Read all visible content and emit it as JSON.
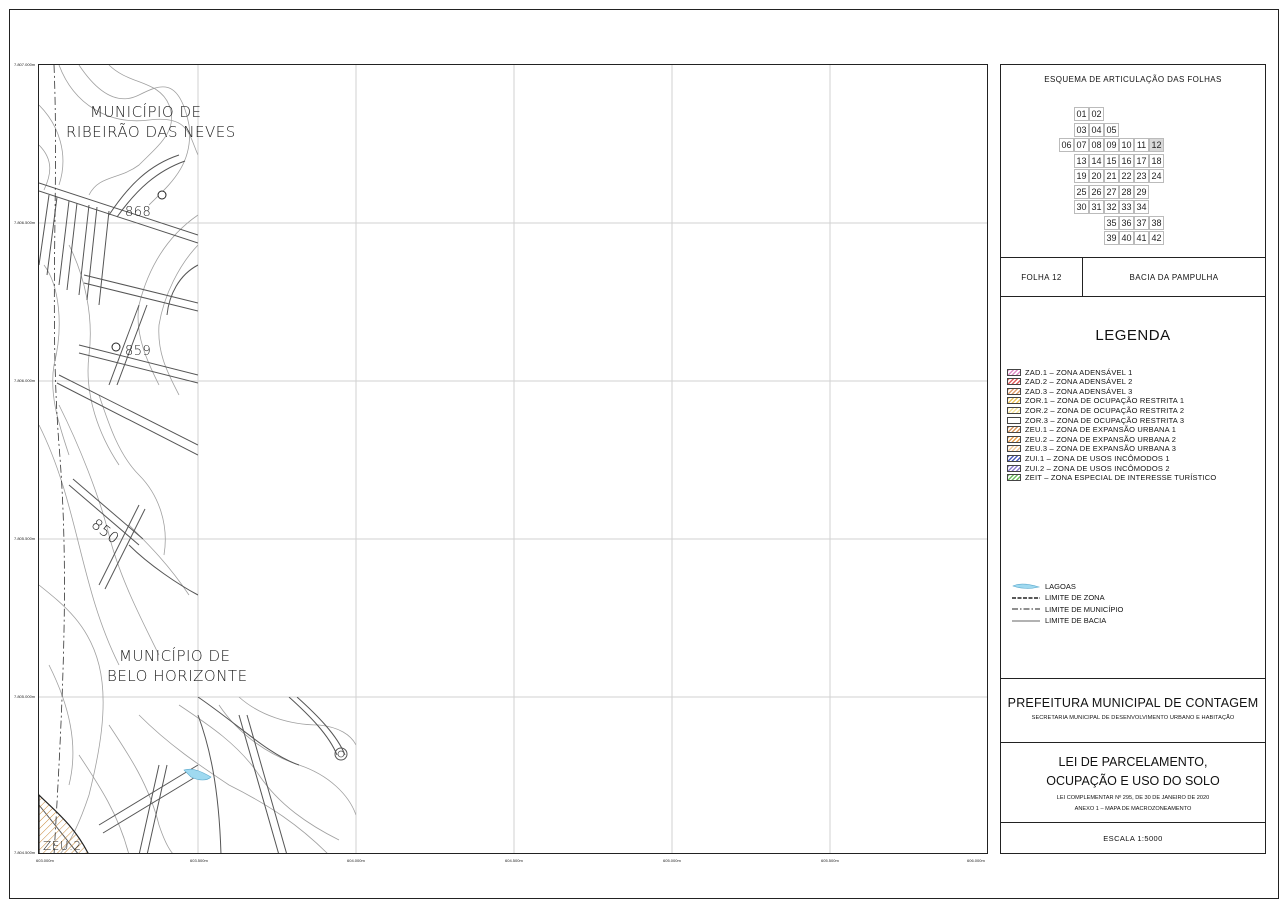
{
  "map": {
    "labels": {
      "mun_ribeirao_1": "MUNICÍPIO DE",
      "mun_ribeirao_2": "RIBEIRÃO DAS NEVES",
      "mun_bh_1": "MUNICÍPIO DE",
      "mun_bh_2": "BELO HORIZONTE",
      "elev_868": "868",
      "elev_859": "859",
      "elev_850": "850",
      "zone_zeu2": "ZEU.2"
    },
    "y_coords": [
      "7.807.000m",
      "7.806.500m",
      "7.806.000m",
      "7.805.500m",
      "7.805.000m",
      "7.804.500m"
    ],
    "x_coords": [
      "603.000m",
      "603.500m",
      "604.000m",
      "604.500m",
      "605.000m",
      "605.500m",
      "606.000m"
    ],
    "colors": {
      "lake": "#9fd9f0",
      "zeu2_hatch": "#e8a050",
      "grid": "#cfcfcf",
      "contour": "#9a9a9a",
      "road": "#444444"
    }
  },
  "panel": {
    "articulation": {
      "title": "ESQUEMA DE ARTICULAÇÃO DAS FOLHAS",
      "rows": [
        {
          "start": 1,
          "cells": [
            "01",
            "02"
          ]
        },
        {
          "start": 1,
          "cells": [
            "03",
            "04",
            "05"
          ]
        },
        {
          "start": 0,
          "cells": [
            "06",
            "07",
            "08",
            "09",
            "10",
            "11",
            "12"
          ]
        },
        {
          "start": 1,
          "cells": [
            "13",
            "14",
            "15",
            "16",
            "17",
            "18"
          ]
        },
        {
          "start": 1,
          "cells": [
            "19",
            "20",
            "21",
            "22",
            "23",
            "24"
          ]
        },
        {
          "start": 1,
          "cells": [
            "25",
            "26",
            "27",
            "28",
            "29"
          ]
        },
        {
          "start": 1,
          "cells": [
            "30",
            "31",
            "32",
            "33",
            "34"
          ]
        },
        {
          "start": 3,
          "cells": [
            "35",
            "36",
            "37",
            "38"
          ]
        },
        {
          "start": 3,
          "cells": [
            "39",
            "40",
            "41",
            "42"
          ]
        }
      ],
      "selected": "12"
    },
    "folha": {
      "label": "FOLHA 12",
      "bacia": "BACIA DA PAMPULHA"
    },
    "legend": {
      "title": "LEGENDA",
      "zones": [
        {
          "text": "ZAD.1  –  ZONA  ADENSÁVEL  1",
          "color": "#e090c8"
        },
        {
          "text": "ZAD.2  –  ZONA  ADENSÁVEL  2",
          "color": "#e06060"
        },
        {
          "text": "ZAD.3  –  ZONA  ADENSÁVEL  3",
          "color": "#e0a070"
        },
        {
          "text": "ZOR.1  –  ZONA  DE  OCUPAÇÃO  RESTRITA  1",
          "color": "#f0c860"
        },
        {
          "text": "ZOR.2  –  ZONA  DE  OCUPAÇÃO  RESTRITA  2",
          "color": "#f8e6a0"
        },
        {
          "text": "ZOR.3  –  ZONA  DE  OCUPAÇÃO  RESTRITA  3",
          "color": "#ffffff"
        },
        {
          "text": "ZEU.1  –  ZONA  DE  EXPANSÃO  URBANA  1",
          "color": "#d89860"
        },
        {
          "text": "ZEU.2  –  ZONA  DE  EXPANSÃO  URBANA  2",
          "color": "#e8a050"
        },
        {
          "text": "ZEU.3  –  ZONA  DE  EXPANSÃO  URBANA  3",
          "color": "#f4cc9c"
        },
        {
          "text": "ZUI.1   –  ZONA  DE  USOS  INCÔMODOS  1",
          "color": "#5060c0"
        },
        {
          "text": "ZUI.2  –  ZONA  DE  USOS  INCÔMODOS  2",
          "color": "#9080d0"
        },
        {
          "text": "ZEIT     –  ZONA  ESPECIAL  DE  INTERESSE  TURÍSTICO",
          "color": "#70c060"
        }
      ],
      "lines": [
        {
          "text": "LAGOAS",
          "symbol": "lake"
        },
        {
          "text": "LIMITE  DE  ZONA",
          "symbol": "dash"
        },
        {
          "text": "LIMITE  DE  MUNICÍPIO",
          "symbol": "dashdot"
        },
        {
          "text": "LIMITE  DE  BACIA",
          "symbol": "solid"
        }
      ]
    },
    "prefeitura": {
      "title": "PREFEITURA MUNICIPAL DE CONTAGEM",
      "subtitle": "SECRETARIA MUNICIPAL DE DESENVOLVIMENTO URBANO E HABITAÇÃO"
    },
    "lei": {
      "line1": "LEI DE PARCELAMENTO,",
      "line2": "OCUPAÇÃO E USO DO SOLO",
      "line3": "LEI COMPLEMENTAR Nº 295, DE 30 DE JANEIRO DE 2020",
      "line4": "ANEXO 1  –  MAPA DE MACROZONEAMENTO"
    },
    "escala": "ESCALA   1:5000"
  }
}
